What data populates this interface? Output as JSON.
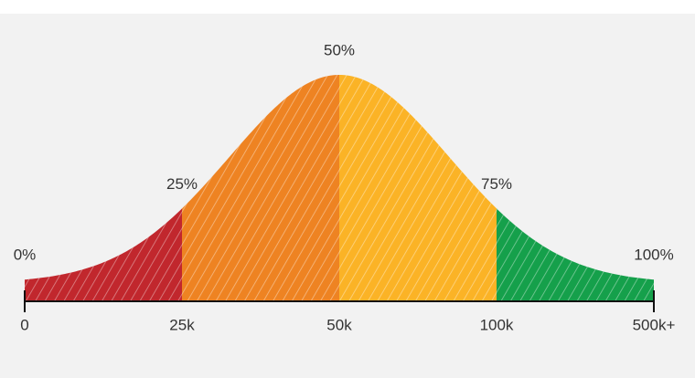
{
  "chart_data": {
    "type": "bell",
    "categories": [
      "0",
      "25k",
      "50k",
      "100k",
      "500k+"
    ],
    "values": [
      0,
      25,
      50,
      75,
      100
    ],
    "value_labels": [
      "0%",
      "25%",
      "50%",
      "75%",
      "100%"
    ],
    "colors": [
      "#c1272d",
      "#ee8322",
      "#fbb326",
      "#15a04b"
    ]
  }
}
